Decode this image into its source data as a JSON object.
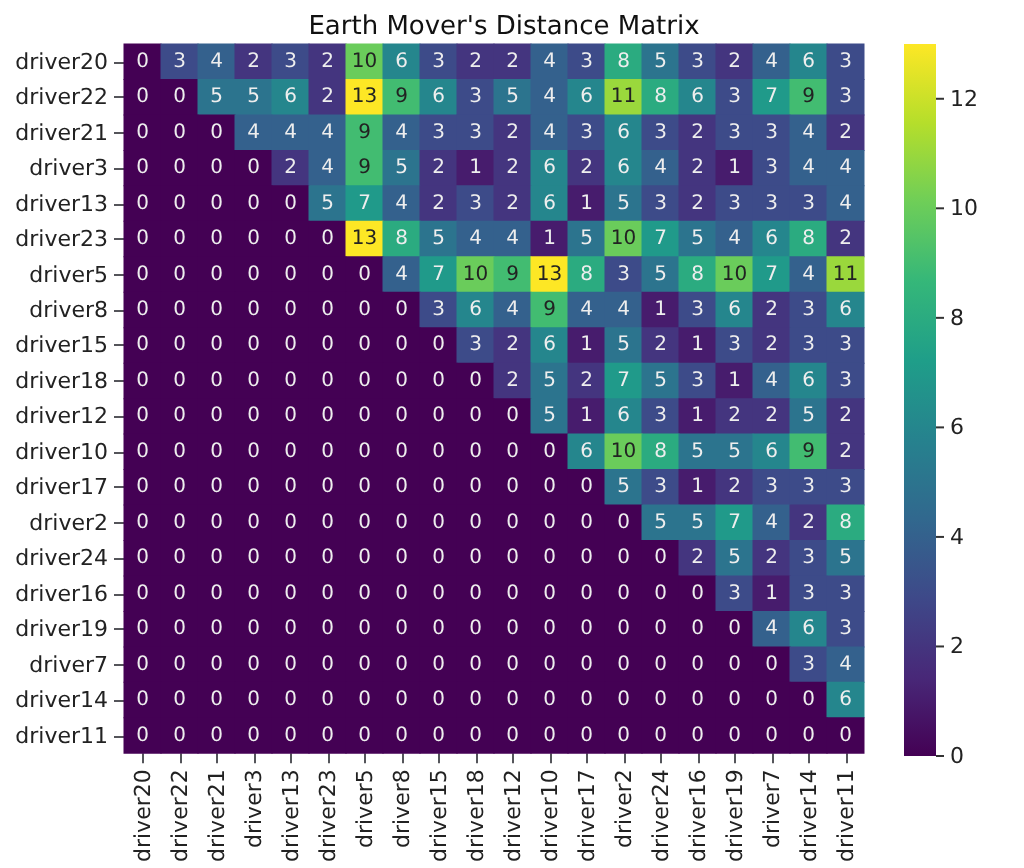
{
  "chart_data": {
    "type": "heatmap",
    "title": "Earth Mover's Distance Matrix",
    "categories": [
      "driver20",
      "driver22",
      "driver21",
      "driver3",
      "driver13",
      "driver23",
      "driver5",
      "driver8",
      "driver15",
      "driver18",
      "driver12",
      "driver10",
      "driver17",
      "driver2",
      "driver24",
      "driver16",
      "driver19",
      "driver7",
      "driver14",
      "driver11"
    ],
    "y_categories": [
      "driver20",
      "driver22",
      "driver21",
      "driver3",
      "driver13",
      "driver23",
      "driver5",
      "driver8",
      "driver15",
      "driver18",
      "driver12",
      "driver10",
      "driver17",
      "driver2",
      "driver24",
      "driver16",
      "driver19",
      "driver7",
      "driver14",
      "driver11"
    ],
    "cells": [
      [
        0,
        3,
        4,
        2,
        3,
        2,
        10,
        6,
        3,
        2,
        2,
        4,
        3,
        8,
        5,
        3,
        2,
        4,
        6,
        3
      ],
      [
        0,
        0,
        5,
        5,
        6,
        2,
        13,
        9,
        6,
        3,
        5,
        4,
        6,
        11,
        8,
        6,
        3,
        7,
        9,
        3
      ],
      [
        0,
        0,
        0,
        4,
        4,
        4,
        9,
        4,
        3,
        3,
        2,
        4,
        3,
        6,
        3,
        2,
        3,
        3,
        4,
        2
      ],
      [
        0,
        0,
        0,
        0,
        2,
        4,
        9,
        5,
        2,
        1,
        2,
        6,
        2,
        6,
        4,
        2,
        1,
        3,
        4,
        4
      ],
      [
        0,
        0,
        0,
        0,
        0,
        5,
        7,
        4,
        2,
        3,
        2,
        6,
        1,
        5,
        3,
        2,
        3,
        3,
        3,
        4
      ],
      [
        0,
        0,
        0,
        0,
        0,
        0,
        13,
        8,
        5,
        4,
        4,
        1,
        5,
        10,
        7,
        5,
        4,
        6,
        8,
        2
      ],
      [
        0,
        0,
        0,
        0,
        0,
        0,
        0,
        4,
        7,
        10,
        9,
        13,
        8,
        3,
        5,
        8,
        10,
        7,
        4,
        11
      ],
      [
        0,
        0,
        0,
        0,
        0,
        0,
        0,
        0,
        3,
        6,
        4,
        9,
        4,
        4,
        1,
        3,
        6,
        2,
        3,
        6
      ],
      [
        0,
        0,
        0,
        0,
        0,
        0,
        0,
        0,
        0,
        3,
        2,
        6,
        1,
        5,
        2,
        1,
        3,
        2,
        3,
        3
      ],
      [
        0,
        0,
        0,
        0,
        0,
        0,
        0,
        0,
        0,
        0,
        2,
        5,
        2,
        7,
        5,
        3,
        1,
        4,
        6,
        3
      ],
      [
        0,
        0,
        0,
        0,
        0,
        0,
        0,
        0,
        0,
        0,
        0,
        5,
        1,
        6,
        3,
        1,
        2,
        2,
        5,
        2
      ],
      [
        0,
        0,
        0,
        0,
        0,
        0,
        0,
        0,
        0,
        0,
        0,
        0,
        6,
        10,
        8,
        5,
        5,
        6,
        9,
        2
      ],
      [
        0,
        0,
        0,
        0,
        0,
        0,
        0,
        0,
        0,
        0,
        0,
        0,
        0,
        5,
        3,
        1,
        2,
        3,
        3,
        3
      ],
      [
        0,
        0,
        0,
        0,
        0,
        0,
        0,
        0,
        0,
        0,
        0,
        0,
        0,
        0,
        5,
        5,
        7,
        4,
        2,
        8
      ],
      [
        0,
        0,
        0,
        0,
        0,
        0,
        0,
        0,
        0,
        0,
        0,
        0,
        0,
        0,
        0,
        2,
        5,
        2,
        3,
        5
      ],
      [
        0,
        0,
        0,
        0,
        0,
        0,
        0,
        0,
        0,
        0,
        0,
        0,
        0,
        0,
        0,
        0,
        3,
        1,
        3,
        3
      ],
      [
        0,
        0,
        0,
        0,
        0,
        0,
        0,
        0,
        0,
        0,
        0,
        0,
        0,
        0,
        0,
        0,
        0,
        4,
        6,
        3
      ],
      [
        0,
        0,
        0,
        0,
        0,
        0,
        0,
        0,
        0,
        0,
        0,
        0,
        0,
        0,
        0,
        0,
        0,
        0,
        3,
        4
      ],
      [
        0,
        0,
        0,
        0,
        0,
        0,
        0,
        0,
        0,
        0,
        0,
        0,
        0,
        0,
        0,
        0,
        0,
        0,
        0,
        6
      ],
      [
        0,
        0,
        0,
        0,
        0,
        0,
        0,
        0,
        0,
        0,
        0,
        0,
        0,
        0,
        0,
        0,
        0,
        0,
        0,
        0
      ]
    ],
    "clim": [
      0,
      13
    ],
    "cticks": [
      0,
      2,
      4,
      6,
      8,
      10,
      12
    ],
    "data_labels": true
  }
}
